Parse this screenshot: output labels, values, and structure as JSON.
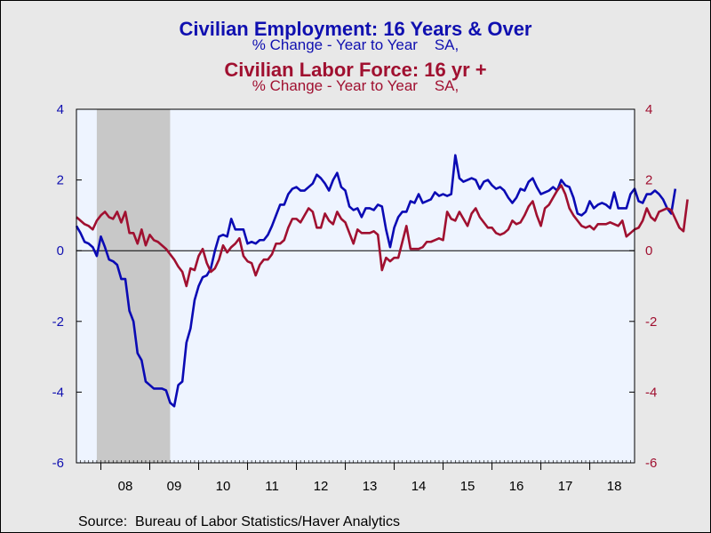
{
  "titles": {
    "series1_title": "Civilian Employment: 16 Years & Over",
    "series1_subtitle": "% Change - Year to Year    SA,",
    "series2_title": "Civilian Labor Force: 16 yr +",
    "series2_subtitle": "% Change - Year to Year    SA,"
  },
  "source": "Source:  Bureau of Labor Statistics/Haver Analytics",
  "colors": {
    "employment": "#0a0ab4",
    "labor_force": "#a01030",
    "plot_background": "#eef4ff",
    "recession": "#c8c8c8",
    "left_axis": "#1010b0",
    "right_axis": "#a01030"
  },
  "chart_data": {
    "type": "line",
    "x_start": "2007-07",
    "x_end": "2018-12",
    "x_tick_labels": [
      "08",
      "09",
      "10",
      "11",
      "12",
      "13",
      "14",
      "15",
      "16",
      "17",
      "18"
    ],
    "ylim": [
      -6,
      4
    ],
    "y_ticks": [
      4,
      2,
      0,
      -2,
      -4,
      -6
    ],
    "y_tick_labels": [
      "4",
      "2",
      "0",
      "-2",
      "-4",
      "-6"
    ],
    "right_y_tick_labels": [
      "4",
      "2",
      "0",
      "-2",
      "-4",
      "-6"
    ],
    "grid": false,
    "zero_line": true,
    "recession_shading": {
      "start": "2007-12",
      "end": "2009-06"
    },
    "series": [
      {
        "name": "Civilian Employment: 16 Years & Over",
        "color": "#0a0ab4",
        "values": [
          0.7,
          0.5,
          0.25,
          0.2,
          0.1,
          -0.15,
          0.4,
          0.1,
          -0.25,
          -0.3,
          -0.4,
          -0.8,
          -0.8,
          -1.7,
          -2.0,
          -2.9,
          -3.1,
          -3.7,
          -3.8,
          -3.9,
          -3.9,
          -3.9,
          -3.95,
          -4.3,
          -4.4,
          -3.8,
          -3.7,
          -2.6,
          -2.2,
          -1.4,
          -1.0,
          -0.75,
          -0.7,
          -0.5,
          0.0,
          0.4,
          0.45,
          0.4,
          0.9,
          0.6,
          0.6,
          0.6,
          0.2,
          0.25,
          0.2,
          0.3,
          0.3,
          0.45,
          0.7,
          1.0,
          1.3,
          1.3,
          1.6,
          1.75,
          1.8,
          1.7,
          1.7,
          1.8,
          1.9,
          2.15,
          2.05,
          1.9,
          1.7,
          2.0,
          2.2,
          1.8,
          1.7,
          1.25,
          1.15,
          1.2,
          0.95,
          1.2,
          1.2,
          1.15,
          1.3,
          1.25,
          0.6,
          0.1,
          0.65,
          0.95,
          1.1,
          1.1,
          1.4,
          1.35,
          1.6,
          1.35,
          1.4,
          1.45,
          1.65,
          1.55,
          1.6,
          1.55,
          1.6,
          2.7,
          2.05,
          1.95,
          2.0,
          2.05,
          2.0,
          1.75,
          1.95,
          2.0,
          1.85,
          1.75,
          1.8,
          1.7,
          1.5,
          1.35,
          1.5,
          1.75,
          1.7,
          1.95,
          2.05,
          1.8,
          1.6,
          1.65,
          1.7,
          1.8,
          1.7,
          2.0,
          1.85,
          1.8,
          1.5,
          1.05,
          1.0,
          1.1,
          1.4,
          1.2,
          1.3,
          1.35,
          1.3,
          1.2,
          1.65,
          1.2,
          1.2,
          1.2,
          1.6,
          1.75,
          1.4,
          1.35,
          1.6,
          1.6,
          1.7,
          1.6,
          1.45,
          1.2,
          1.05,
          1.75
        ]
      },
      {
        "name": "Civilian Labor Force: 16 yr +",
        "color": "#a01030",
        "values": [
          0.95,
          0.85,
          0.75,
          0.7,
          0.6,
          0.85,
          1.0,
          1.1,
          0.95,
          0.9,
          1.1,
          0.8,
          1.1,
          0.5,
          0.5,
          0.2,
          0.6,
          0.15,
          0.45,
          0.3,
          0.25,
          0.15,
          0.05,
          -0.1,
          -0.25,
          -0.45,
          -0.6,
          -1.0,
          -0.5,
          -0.55,
          -0.15,
          0.05,
          -0.35,
          -0.6,
          -0.5,
          -0.25,
          0.15,
          -0.05,
          0.1,
          0.2,
          0.35,
          -0.15,
          -0.3,
          -0.35,
          -0.7,
          -0.4,
          -0.25,
          -0.25,
          -0.1,
          0.2,
          0.2,
          0.3,
          0.65,
          0.9,
          0.9,
          0.8,
          1.0,
          1.2,
          1.1,
          0.65,
          0.65,
          1.05,
          0.85,
          0.75,
          1.1,
          0.9,
          0.8,
          0.5,
          0.2,
          0.6,
          0.5,
          0.5,
          0.5,
          0.55,
          0.45,
          -0.55,
          -0.2,
          -0.3,
          -0.2,
          -0.2,
          0.25,
          0.7,
          0.05,
          0.05,
          0.05,
          0.1,
          0.25,
          0.25,
          0.3,
          0.35,
          0.3,
          1.1,
          0.9,
          0.85,
          1.1,
          0.9,
          0.7,
          1.05,
          1.2,
          0.95,
          0.8,
          0.65,
          0.65,
          0.5,
          0.45,
          0.5,
          0.6,
          0.85,
          0.75,
          0.8,
          1.0,
          1.25,
          1.4,
          1.0,
          0.7,
          1.2,
          1.3,
          1.5,
          1.7,
          1.85,
          1.6,
          1.2,
          1.0,
          0.85,
          0.7,
          0.65,
          0.7,
          0.6,
          0.75,
          0.75,
          0.75,
          0.8,
          0.75,
          0.7,
          0.85,
          0.4,
          0.5,
          0.6,
          0.65,
          0.85,
          1.2,
          0.95,
          0.85,
          1.1,
          1.15,
          1.2,
          1.15,
          0.9,
          0.65,
          0.55,
          1.45
        ]
      }
    ]
  }
}
